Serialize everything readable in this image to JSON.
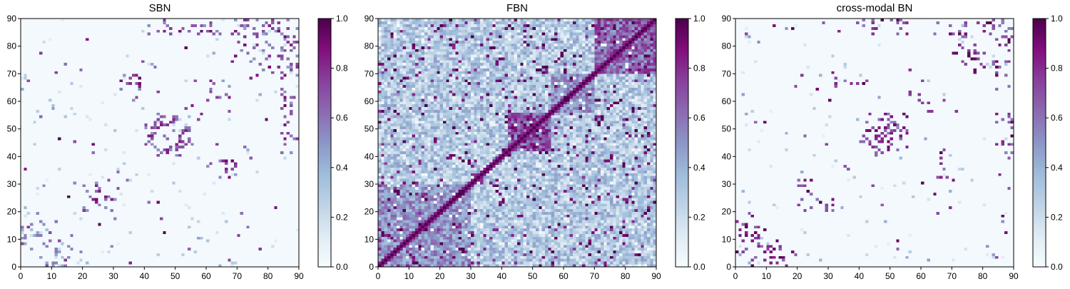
{
  "chart_data": [
    {
      "type": "heatmap",
      "title": "SBN",
      "xlabel": "",
      "ylabel": "",
      "x_range": [
        0,
        90
      ],
      "y_range": [
        0,
        90
      ],
      "x_ticks": [
        "0",
        "10",
        "20",
        "30",
        "40",
        "50",
        "60",
        "70",
        "80",
        "90"
      ],
      "y_ticks": [
        "0",
        "10",
        "20",
        "30",
        "40",
        "50",
        "60",
        "70",
        "80",
        "90"
      ],
      "matrix_size": 90,
      "symmetric": true,
      "background_value": 0.02,
      "colorbar": {
        "range": [
          0,
          1
        ],
        "ticks": [
          "0.0",
          "0.2",
          "0.4",
          "0.6",
          "0.8",
          "1.0"
        ]
      },
      "colormap": [
        "#f7fcfd",
        "#e0ecf4",
        "#bfd3e6",
        "#9ebcda",
        "#8c96c6",
        "#8c6bb1",
        "#88419d",
        "#810f7c",
        "#4d004b"
      ],
      "clusters": [
        {
          "x": [
            43,
            52
          ],
          "y": [
            40,
            56
          ],
          "level": 0.9,
          "density": 0.3
        },
        {
          "x": [
            32,
            40
          ],
          "y": [
            64,
            70
          ],
          "level": 0.95,
          "density": 0.25
        },
        {
          "x": [
            20,
            32
          ],
          "y": [
            20,
            28
          ],
          "level": 0.9,
          "density": 0.15
        },
        {
          "x": [
            0,
            8
          ],
          "y": [
            5,
            20
          ],
          "level": 0.6,
          "density": 0.12
        },
        {
          "x": [
            58,
            66
          ],
          "y": [
            55,
            68
          ],
          "level": 0.9,
          "density": 0.12
        },
        {
          "x": [
            74,
            88
          ],
          "y": [
            70,
            88
          ],
          "level": 0.8,
          "density": 0.12
        },
        {
          "x": [
            84,
            90
          ],
          "y": [
            40,
            88
          ],
          "level": 0.9,
          "density": 0.15
        },
        {
          "x": [
            8,
            16
          ],
          "y": [
            0,
            10
          ],
          "level": 0.8,
          "density": 0.12
        }
      ],
      "noise_density": 0.012
    },
    {
      "type": "heatmap",
      "title": "FBN",
      "xlabel": "",
      "ylabel": "",
      "x_range": [
        0,
        90
      ],
      "y_range": [
        0,
        90
      ],
      "x_ticks": [
        "0",
        "10",
        "20",
        "30",
        "40",
        "50",
        "60",
        "70",
        "80",
        "90"
      ],
      "y_ticks": [
        "0",
        "10",
        "20",
        "30",
        "40",
        "50",
        "60",
        "70",
        "80",
        "90"
      ],
      "matrix_size": 90,
      "symmetric": true,
      "diagonal": 1.0,
      "colorbar": {
        "range": [
          0,
          1
        ],
        "ticks": [
          "0.0",
          "0.2",
          "0.4",
          "0.6",
          "0.8",
          "1.0"
        ]
      },
      "colormap": [
        "#f7fcfd",
        "#e0ecf4",
        "#bfd3e6",
        "#9ebcda",
        "#8c96c6",
        "#8c6bb1",
        "#88419d",
        "#810f7c",
        "#4d004b"
      ],
      "blocks": [
        {
          "x": [
            42,
            56
          ],
          "y": [
            40,
            56
          ],
          "level": 0.8
        },
        {
          "x": [
            70,
            90
          ],
          "y": [
            70,
            90
          ],
          "level": 0.7
        },
        {
          "x": [
            0,
            30
          ],
          "y": [
            0,
            30
          ],
          "level": 0.55
        },
        {
          "x": [
            56,
            70
          ],
          "y": [
            56,
            70
          ],
          "level": 0.55
        }
      ],
      "base_level": 0.3
    },
    {
      "type": "heatmap",
      "title": "cross-modal BN",
      "xlabel": "",
      "ylabel": "",
      "x_range": [
        0,
        90
      ],
      "y_range": [
        0,
        90
      ],
      "x_ticks": [
        "0",
        "10",
        "20",
        "30",
        "40",
        "50",
        "60",
        "70",
        "80",
        "90"
      ],
      "y_ticks": [
        "0",
        "10",
        "20",
        "30",
        "40",
        "50",
        "60",
        "70",
        "80",
        "90"
      ],
      "matrix_size": 90,
      "symmetric": true,
      "background_value": 0.02,
      "colorbar": {
        "range": [
          0,
          1
        ],
        "ticks": [
          "0.0",
          "0.2",
          "0.4",
          "0.6",
          "0.8",
          "1.0"
        ]
      },
      "colormap": [
        "#f7fcfd",
        "#e0ecf4",
        "#bfd3e6",
        "#9ebcda",
        "#8c96c6",
        "#8c6bb1",
        "#88419d",
        "#810f7c",
        "#4d004b"
      ],
      "clusters": [
        {
          "x": [
            43,
            52
          ],
          "y": [
            40,
            56
          ],
          "level": 1.0,
          "density": 0.3
        },
        {
          "x": [
            32,
            40
          ],
          "y": [
            64,
            70
          ],
          "level": 1.0,
          "density": 0.2
        },
        {
          "x": [
            20,
            32
          ],
          "y": [
            20,
            28
          ],
          "level": 1.0,
          "density": 0.12
        },
        {
          "x": [
            0,
            8
          ],
          "y": [
            5,
            20
          ],
          "level": 1.0,
          "density": 0.1
        },
        {
          "x": [
            58,
            66
          ],
          "y": [
            55,
            68
          ],
          "level": 1.0,
          "density": 0.12
        },
        {
          "x": [
            74,
            88
          ],
          "y": [
            70,
            88
          ],
          "level": 1.0,
          "density": 0.12
        },
        {
          "x": [
            84,
            90
          ],
          "y": [
            40,
            88
          ],
          "level": 1.0,
          "density": 0.12
        },
        {
          "x": [
            8,
            16
          ],
          "y": [
            0,
            10
          ],
          "level": 1.0,
          "density": 0.1
        }
      ],
      "noise_density": 0.01
    }
  ]
}
